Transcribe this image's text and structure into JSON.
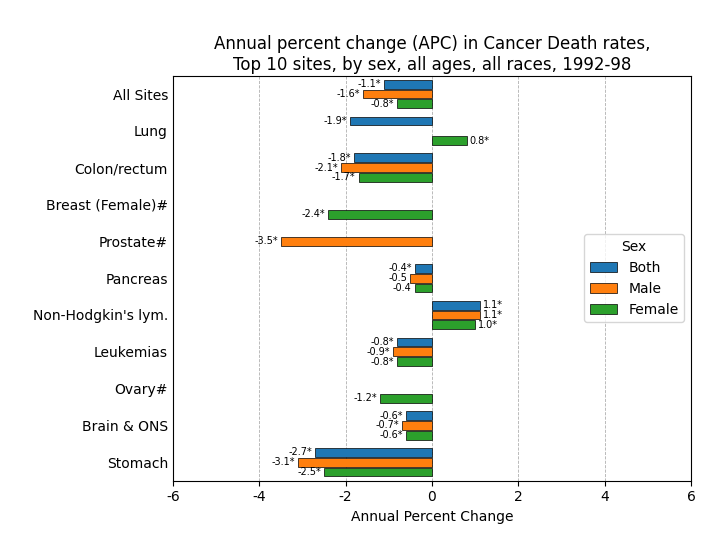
{
  "chart_data": {
    "type": "bar",
    "orientation": "horizontal",
    "title": "Annual percent change (APC) in Cancer Death rates,\nTop 10 sites, by sex, all ages, all races, 1992-98",
    "categories": [
      "All Sites",
      "Lung",
      "Colon/rectum",
      "Breast (Female)#",
      "Prostate#",
      "Pancreas",
      "Non-Hodgkin's lym.",
      "Leukemias",
      "Ovary#",
      "Brain & ONS",
      "Stomach"
    ],
    "series": [
      {
        "name": "Both",
        "values": [
          -1.1,
          -1.9,
          -1.8,
          null,
          null,
          -0.4,
          1.1,
          -0.8,
          null,
          -0.6,
          -2.7
        ],
        "value_labels": [
          "-1.1*",
          "-1.9*",
          "-1.8*",
          null,
          null,
          "-0.4*",
          "1.1*",
          "-0.8*",
          null,
          "-0.6*",
          "-2.7*"
        ]
      },
      {
        "name": "Male",
        "values": [
          -1.6,
          null,
          -2.1,
          null,
          -3.5,
          -0.5,
          1.1,
          -0.9,
          null,
          -0.7,
          -3.1
        ],
        "value_labels": [
          "-1.6*",
          null,
          "-2.1*",
          null,
          "-3.5*",
          "-0.5",
          "1.1*",
          "-0.9*",
          null,
          "-0.7*",
          "-3.1*"
        ]
      },
      {
        "name": "Female",
        "values": [
          -0.8,
          0.8,
          -1.7,
          -2.4,
          null,
          -0.4,
          1.0,
          -0.8,
          -1.2,
          -0.6,
          -2.5
        ],
        "value_labels": [
          "-0.8*",
          "0.8*",
          "-1.7*",
          "-2.4*",
          null,
          "-0.4",
          "1.0*",
          "-0.8*",
          "-1.2*",
          "-0.6*",
          "-2.5*"
        ]
      }
    ],
    "xlabel": "Annual Percent Change",
    "xlim": [
      -6,
      6
    ],
    "xticks": [
      -6,
      -4,
      -2,
      0,
      2,
      4,
      6
    ],
    "grid": true,
    "legend": "center right",
    "legend_title": "Sex",
    "data_labels": true
  }
}
